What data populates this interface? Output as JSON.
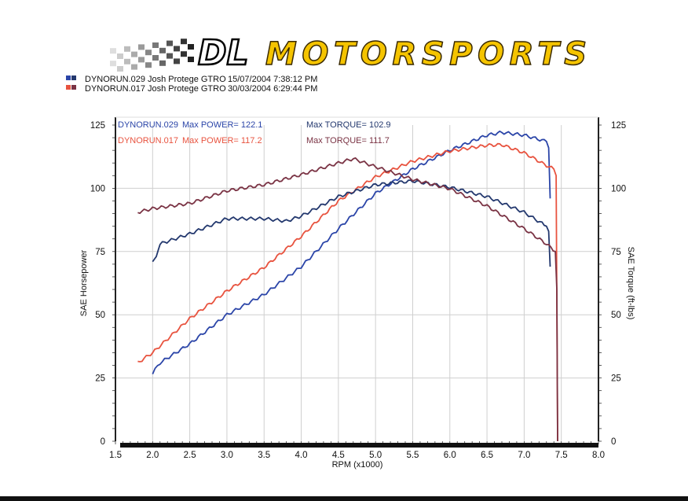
{
  "logo": {
    "brand_initials": "DL",
    "brand_name": "MOTORSPORTS",
    "color": "#f5c400"
  },
  "header_legend": [
    {
      "run": "DYNORUN.029",
      "vehicle": "Josh Protege GTRO",
      "datetime": "15/07/2004 7:38:12 PM",
      "colors": [
        "#2b45a8",
        "#23386e"
      ]
    },
    {
      "run": "DYNORUN.017",
      "vehicle": "Josh Protege GTRO",
      "datetime": "30/03/2004 6:29:44 PM",
      "colors": [
        "#e8533f",
        "#7a3344"
      ]
    }
  ],
  "annotations": [
    {
      "run": "DYNORUN.029",
      "max_power": "Max POWER= 122.1",
      "max_torque": "Max TORQUE= 102.9",
      "power_color": "#2b45a8",
      "torque_color": "#23386e"
    },
    {
      "run": "DYNORUN.017",
      "max_power": "Max POWER= 117.2",
      "max_torque": "Max TORQUE= 111.7",
      "power_color": "#e8533f",
      "torque_color": "#7a3344"
    }
  ],
  "chart_data": {
    "type": "line",
    "title": "",
    "xlabel": "RPM (x1000)",
    "ylabel": "SAE Horsepower",
    "y2label": "SAE Torque (ft-lbs)",
    "xlim": [
      1.5,
      8.0
    ],
    "ylim": [
      0,
      125
    ],
    "y2lim": [
      0,
      125
    ],
    "grid": true,
    "x_ticks": [
      "1.5",
      "2.0",
      "2.5",
      "3.0",
      "3.5",
      "4.0",
      "4.5",
      "5.0",
      "5.5",
      "6.0",
      "6.5",
      "7.0",
      "7.5",
      "8.0"
    ],
    "y_ticks": [
      "0",
      "25",
      "50",
      "75",
      "100",
      "125"
    ],
    "series": [
      {
        "name": "DYNORUN.029 power",
        "color": "#2b45a8",
        "x": [
          2.0,
          2.1,
          2.5,
          3.0,
          3.5,
          4.0,
          4.5,
          5.0,
          5.5,
          6.0,
          6.5,
          6.7,
          7.0,
          7.3,
          7.33,
          7.35
        ],
        "y": [
          27,
          31,
          38.5,
          50,
          58,
          69,
          84,
          98,
          107.6,
          115,
          121,
          122.1,
          121,
          118.5,
          116,
          96
        ]
      },
      {
        "name": "DYNORUN.017 power",
        "color": "#e8533f",
        "x": [
          1.8,
          2.0,
          2.5,
          3.0,
          3.5,
          4.0,
          4.5,
          5.0,
          5.5,
          6.0,
          6.5,
          6.7,
          7.0,
          7.3,
          7.4,
          7.43,
          7.45
        ],
        "y": [
          31,
          35,
          48.5,
          59.4,
          68.7,
          81,
          95,
          104.5,
          110.7,
          114.7,
          117,
          117.2,
          114,
          109,
          107.6,
          105,
          0
        ]
      },
      {
        "name": "DYNORUN.029 torque",
        "color": "#23386e",
        "x": [
          2.0,
          2.05,
          2.1,
          2.5,
          3.0,
          3.5,
          3.8,
          4.0,
          4.5,
          5.0,
          5.5,
          6.0,
          6.5,
          7.0,
          7.3,
          7.33,
          7.35
        ],
        "y": [
          71,
          73,
          78,
          82,
          88,
          88,
          87,
          89,
          96.7,
          101.4,
          102.9,
          100.4,
          96.7,
          90.5,
          85,
          83,
          69
        ]
      },
      {
        "name": "DYNORUN.017 torque",
        "color": "#7a3344",
        "x": [
          1.8,
          2.0,
          2.5,
          3.0,
          3.5,
          4.0,
          4.5,
          4.7,
          5.0,
          5.5,
          6.0,
          6.5,
          7.0,
          7.3,
          7.42,
          7.44,
          7.45
        ],
        "y": [
          90.5,
          92,
          94,
          99,
          101.4,
          105.4,
          110,
          111.7,
          108.5,
          103.5,
          99.8,
          93,
          84,
          78,
          75,
          60,
          0
        ]
      }
    ]
  }
}
